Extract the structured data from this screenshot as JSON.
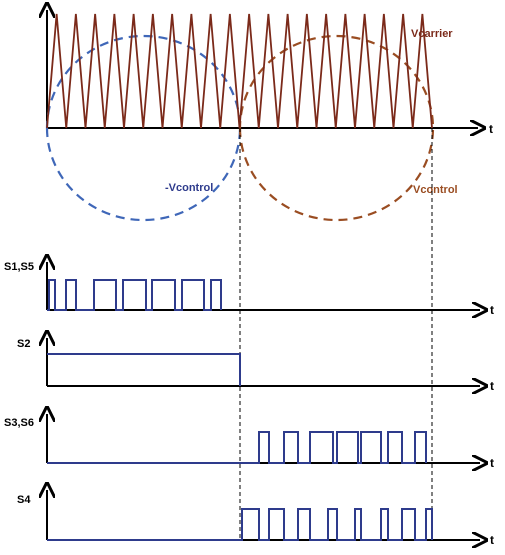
{
  "labels": {
    "vcarrier": "Vcarrier",
    "vcontrol_neg": "-Vcontrol",
    "vcontrol": "Vcontrol",
    "s1s5": "S1,S5",
    "s2": "S2",
    "s3s6": "S3,S6",
    "s4": "S4",
    "t": "t"
  },
  "colors": {
    "carrier": "#7b2a1a",
    "control_neg": "#3f67b8",
    "control_pos": "#9a4d22",
    "pulse": "#2e3b8c",
    "axis": "#000000",
    "label_carrier": "#7b2a1a",
    "label_control_neg": "#2e3b8c",
    "label_control_pos": "#9a4d22"
  },
  "carrier": {
    "peaks_per_half_period": 10,
    "half_periods": 2
  },
  "signals": {
    "s1s5_level": "pulses during first half period",
    "s2_level": "high during first half period",
    "s3s6_level": "pulses during second half period",
    "s4_level": "pulses during second half period"
  }
}
